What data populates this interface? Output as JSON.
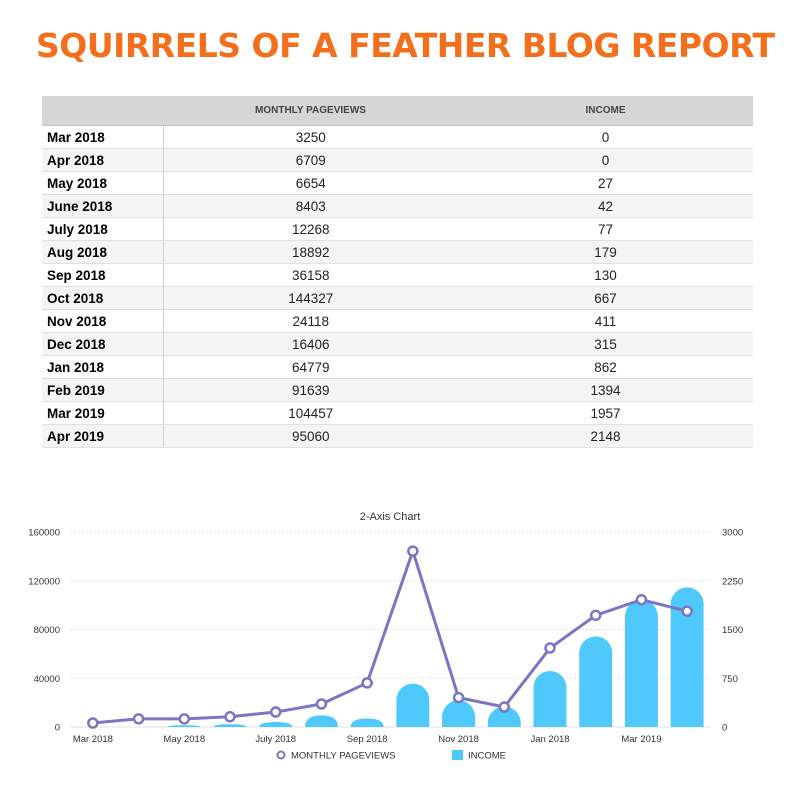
{
  "report": {
    "title": "SQUIRRELS OF A FEATHER BLOG REPORT"
  },
  "table": {
    "columns": [
      "",
      "MONTHLY PAGEVIEWS",
      "INCOME"
    ],
    "rows": [
      {
        "month": "Mar 2018",
        "pageviews": "3250",
        "income": "0"
      },
      {
        "month": "Apr 2018",
        "pageviews": "6709",
        "income": "0"
      },
      {
        "month": "May 2018",
        "pageviews": "6654",
        "income": "27"
      },
      {
        "month": "June 2018",
        "pageviews": "8403",
        "income": "42"
      },
      {
        "month": "July 2018",
        "pageviews": "12268",
        "income": "77"
      },
      {
        "month": "Aug 2018",
        "pageviews": "18892",
        "income": "179"
      },
      {
        "month": "Sep 2018",
        "pageviews": "36158",
        "income": "130"
      },
      {
        "month": "Oct 2018",
        "pageviews": "144327",
        "income": "667"
      },
      {
        "month": "Nov 2018",
        "pageviews": "24118",
        "income": "411"
      },
      {
        "month": "Dec 2018",
        "pageviews": "16406",
        "income": "315"
      },
      {
        "month": "Jan 2018",
        "pageviews": "64779",
        "income": "862"
      },
      {
        "month": "Feb 2019",
        "pageviews": "91639",
        "income": "1394"
      },
      {
        "month": "Mar 2019",
        "pageviews": "104457",
        "income": "1957"
      },
      {
        "month": "Apr 2019",
        "pageviews": "95060",
        "income": "2148"
      }
    ]
  },
  "chart_data": {
    "type": "bar",
    "title": "2-Axis Chart",
    "categories": [
      "Mar 2018",
      "Apr 2018",
      "May 2018",
      "June 2018",
      "July 2018",
      "Aug 2018",
      "Sep 2018",
      "Oct 2018",
      "Nov 2018",
      "Dec 2018",
      "Jan 2018",
      "Feb 2019",
      "Mar 2019",
      "Apr 2019"
    ],
    "x_tick_labels": [
      "Mar 2018",
      "",
      "May 2018",
      "",
      "July 2018",
      "",
      "Sep 2018",
      "",
      "Nov 2018",
      "",
      "Jan 2018",
      "",
      "Mar 2019",
      ""
    ],
    "series": [
      {
        "name": "MONTHLY PAGEVIEWS",
        "type": "line",
        "axis": "left",
        "color": "#7b75c4",
        "values": [
          3250,
          6709,
          6654,
          8403,
          12268,
          18892,
          36158,
          144327,
          24118,
          16406,
          64779,
          91639,
          104457,
          95060
        ]
      },
      {
        "name": "INCOME",
        "type": "bar",
        "axis": "right",
        "color": "#4fc8fb",
        "values": [
          0,
          0,
          27,
          42,
          77,
          179,
          130,
          667,
          411,
          315,
          862,
          1394,
          1957,
          2148
        ]
      }
    ],
    "y_left": {
      "min": 0,
      "max": 160000,
      "ticks": [
        "0",
        "40000",
        "80000",
        "120000",
        "160000"
      ]
    },
    "y_right": {
      "min": 0,
      "max": 3000,
      "ticks": [
        "0",
        "750",
        "1500",
        "2250",
        "3000"
      ]
    },
    "grid": true,
    "legend": "bottom-center"
  }
}
